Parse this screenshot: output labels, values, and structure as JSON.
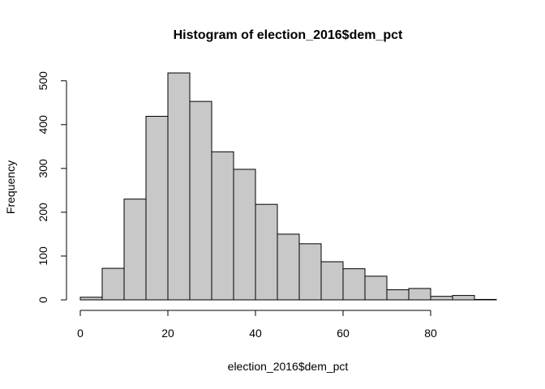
{
  "chart_data": {
    "type": "bar",
    "title": "Histogram of election_2016$dem_pct",
    "xlabel": "election_2016$dem_pct",
    "ylabel": "Frequency",
    "bin_edges": [
      0,
      5,
      10,
      15,
      20,
      25,
      30,
      35,
      40,
      45,
      50,
      55,
      60,
      65,
      70,
      75,
      80,
      85,
      90,
      95
    ],
    "values": [
      6,
      72,
      230,
      419,
      518,
      453,
      338,
      298,
      218,
      150,
      128,
      87,
      71,
      54,
      23,
      26,
      8,
      10,
      1
    ],
    "xlim": [
      0,
      95
    ],
    "ylim": [
      0,
      518
    ],
    "xticks": [
      0,
      20,
      40,
      60,
      80
    ],
    "yticks": [
      0,
      100,
      200,
      300,
      400,
      500
    ],
    "bar_color": "#c8c8c8",
    "grid": false
  }
}
